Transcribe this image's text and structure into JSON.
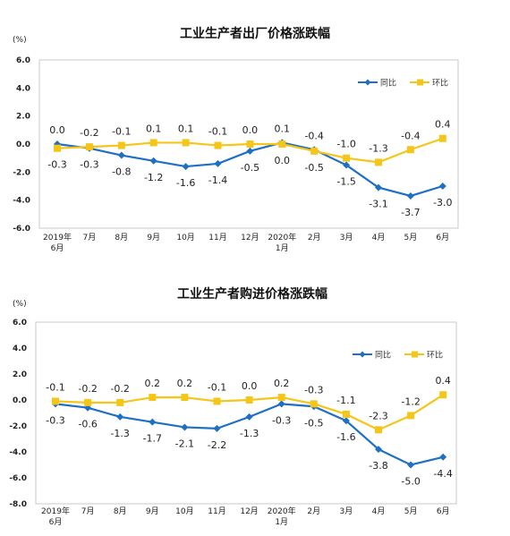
{
  "chart_data": [
    {
      "type": "line",
      "title": "工业生产者出厂价格涨跌幅",
      "unit": "(%)",
      "categories": [
        "2019年\n6月",
        "7月",
        "8月",
        "9月",
        "10月",
        "11月",
        "12月",
        "2020年\n1月",
        "2月",
        "3月",
        "4月",
        "5月",
        "6月"
      ],
      "ylim": [
        -6.0,
        6.0
      ],
      "yticks": [
        "6.0",
        "4.0",
        "2.0",
        "0.0",
        "-2.0",
        "-4.0",
        "-6.0"
      ],
      "legend_position": "top-right",
      "series": [
        {
          "name": "同比",
          "color": "#1f6fc5",
          "marker": "diamond",
          "values": [
            0.0,
            -0.3,
            -0.8,
            -1.2,
            -1.6,
            -1.4,
            -0.5,
            0.1,
            -0.4,
            -1.5,
            -3.1,
            -3.7,
            -3.0
          ],
          "labels": [
            "0.0",
            "-0.3",
            "-0.8",
            "-1.2",
            "-1.6",
            "-1.4",
            "-0.5",
            "0.1",
            "-0.4",
            "-1.5",
            "-3.1",
            "-3.7",
            "-3.0"
          ]
        },
        {
          "name": "环比",
          "color": "#f5c518",
          "marker": "square",
          "values": [
            -0.3,
            -0.2,
            -0.1,
            0.1,
            0.1,
            -0.1,
            0.0,
            0.0,
            -0.5,
            -1.0,
            -1.3,
            -0.4,
            0.4
          ],
          "labels": [
            "-0.3",
            "-0.2",
            "-0.1",
            "0.1",
            "0.1",
            "-0.1",
            "0.0",
            "0.0",
            "-0.5",
            "-1.0",
            "-1.3",
            "-0.4",
            "0.4"
          ]
        }
      ]
    },
    {
      "type": "line",
      "title": "工业生产者购进价格涨跌幅",
      "unit": "(%)",
      "categories": [
        "2019年\n6月",
        "7月",
        "8月",
        "9月",
        "10月",
        "11月",
        "12月",
        "2020年\n1月",
        "2月",
        "3月",
        "4月",
        "5月",
        "6月"
      ],
      "ylim": [
        -8.0,
        6.0
      ],
      "yticks": [
        "6.0",
        "4.0",
        "2.0",
        "0.0",
        "-2.0",
        "-4.0",
        "-6.0",
        "-8.0"
      ],
      "legend_position": "top-right",
      "series": [
        {
          "name": "同比",
          "color": "#1f6fc5",
          "marker": "diamond",
          "values": [
            -0.3,
            -0.6,
            -1.3,
            -1.7,
            -2.1,
            -2.2,
            -1.3,
            -0.3,
            -0.5,
            -1.6,
            -3.8,
            -5.0,
            -4.4
          ],
          "labels": [
            "-0.3",
            "-0.6",
            "-1.3",
            "-1.7",
            "-2.1",
            "-2.2",
            "-1.3",
            "-0.3",
            "-0.5",
            "-1.6",
            "-3.8",
            "-5.0",
            "-4.4"
          ]
        },
        {
          "name": "环比",
          "color": "#f5c518",
          "marker": "square",
          "values": [
            -0.1,
            -0.2,
            -0.2,
            0.2,
            0.2,
            -0.1,
            0.0,
            0.2,
            -0.3,
            -1.1,
            -2.3,
            -1.2,
            0.4
          ],
          "labels": [
            "-0.1",
            "-0.2",
            "-0.2",
            "0.2",
            "0.2",
            "-0.1",
            "0.0",
            "0.2",
            "-0.3",
            "-1.1",
            "-2.3",
            "-1.2",
            "0.4"
          ]
        }
      ]
    }
  ]
}
